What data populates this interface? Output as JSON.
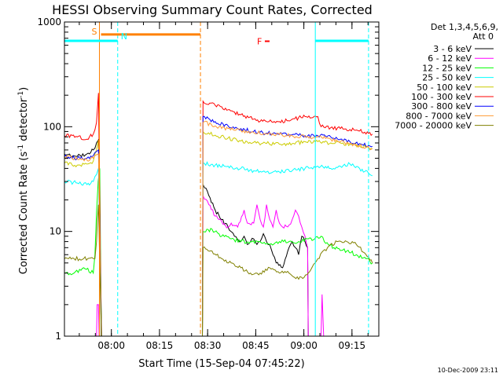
{
  "window": {
    "title": "HESSI Observing Summary Count Rates, Corrected"
  },
  "chart_data": {
    "type": "line",
    "title": "HESSI Observing Summary Count Rates, Corrected",
    "xlabel": "Start Time (15-Sep-04 07:45:22)",
    "ylabel": "Corrected Count Rate (s⁻¹ detector⁻¹)",
    "ylabel_parts": {
      "main": "Corrected Count Rate (s",
      "sup1": "-1",
      "mid": " detector",
      "sup2": "-1",
      "end": ")"
    },
    "x_unit": "minutes after 07:45:22",
    "xlim": [
      0,
      98
    ],
    "ylim": [
      1,
      1000
    ],
    "y_scale": "log",
    "x_ticks": [
      {
        "t": 14.63,
        "label": "08:00"
      },
      {
        "t": 29.63,
        "label": "08:15"
      },
      {
        "t": 44.63,
        "label": "08:30"
      },
      {
        "t": 59.63,
        "label": "08:45"
      },
      {
        "t": 74.63,
        "label": "09:00"
      },
      {
        "t": 89.63,
        "label": "09:15"
      }
    ],
    "y_ticks": [
      {
        "v": 1,
        "label": "1"
      },
      {
        "v": 10,
        "label": "10"
      },
      {
        "v": 100,
        "label": "100"
      },
      {
        "v": 1000,
        "label": "1000"
      }
    ],
    "legend": {
      "position": "right",
      "header1": "Det 1,3,4,5,6,9,",
      "header2": "Att 0"
    },
    "series": [
      {
        "name": "3 - 6 keV",
        "color": "#000000",
        "points": [
          [
            0,
            55
          ],
          [
            4,
            52
          ],
          [
            7,
            55
          ],
          [
            9,
            60
          ],
          [
            10,
            70
          ],
          [
            10.6,
            75
          ],
          [
            11.6,
            1
          ],
          [
            43,
            1
          ],
          [
            43.2,
            28
          ],
          [
            45,
            22
          ],
          [
            47,
            16
          ],
          [
            49,
            13
          ],
          [
            51,
            11
          ],
          [
            53,
            9
          ],
          [
            55,
            8
          ],
          [
            56,
            9
          ],
          [
            57,
            7.5
          ],
          [
            58,
            8
          ],
          [
            59,
            8.5
          ],
          [
            60,
            7.5
          ],
          [
            61,
            8
          ],
          [
            62,
            9.5
          ],
          [
            63,
            8
          ],
          [
            64,
            7.5
          ],
          [
            65,
            6
          ],
          [
            66,
            5
          ],
          [
            68,
            4.5
          ],
          [
            70,
            7
          ],
          [
            71,
            8
          ],
          [
            72,
            7
          ],
          [
            73,
            6
          ],
          [
            74,
            9
          ],
          [
            75,
            8
          ],
          [
            75.8,
            7
          ],
          [
            76,
            1
          ],
          [
            98,
            1
          ]
        ]
      },
      {
        "name": "6 - 12 keV",
        "color": "#ff00ff",
        "points": [
          [
            0,
            1
          ],
          [
            10,
            1
          ],
          [
            10.2,
            2
          ],
          [
            10.6,
            2
          ],
          [
            10.8,
            1
          ],
          [
            43,
            1
          ],
          [
            43.2,
            22
          ],
          [
            45,
            18
          ],
          [
            47,
            14
          ],
          [
            49,
            12.5
          ],
          [
            51,
            11
          ],
          [
            52,
            12
          ],
          [
            54,
            11
          ],
          [
            56,
            16
          ],
          [
            57,
            12
          ],
          [
            59,
            12
          ],
          [
            60,
            18
          ],
          [
            61,
            13
          ],
          [
            62,
            11
          ],
          [
            63,
            18
          ],
          [
            64,
            13
          ],
          [
            65,
            11
          ],
          [
            66,
            16
          ],
          [
            67,
            12
          ],
          [
            68,
            11
          ],
          [
            70,
            11.5
          ],
          [
            71,
            13
          ],
          [
            72,
            16
          ],
          [
            73,
            14
          ],
          [
            74,
            11
          ],
          [
            75,
            9
          ],
          [
            75.8,
            7
          ],
          [
            76,
            1
          ],
          [
            80,
            1
          ],
          [
            80.3,
            2.5
          ],
          [
            80.8,
            1
          ],
          [
            98,
            1
          ]
        ]
      },
      {
        "name": "12 - 25 keV",
        "color": "#00ff00",
        "points": [
          [
            0,
            4
          ],
          [
            3,
            4
          ],
          [
            6,
            4.5
          ],
          [
            9,
            4
          ],
          [
            9.5,
            6
          ],
          [
            10,
            15
          ],
          [
            10.5,
            30
          ],
          [
            11,
            40
          ],
          [
            11.5,
            1
          ],
          [
            43,
            1
          ],
          [
            43.2,
            10
          ],
          [
            46,
            10.5
          ],
          [
            49,
            9
          ],
          [
            52,
            8.5
          ],
          [
            55,
            8
          ],
          [
            58,
            8
          ],
          [
            61,
            8
          ],
          [
            64,
            7.5
          ],
          [
            67,
            8
          ],
          [
            70,
            8
          ],
          [
            73,
            8
          ],
          [
            76,
            8.5
          ],
          [
            78,
            8.5
          ],
          [
            80,
            9
          ],
          [
            81,
            8
          ],
          [
            84,
            7
          ],
          [
            88,
            6.5
          ],
          [
            91,
            6
          ],
          [
            94,
            5.5
          ],
          [
            96,
            5
          ]
        ]
      },
      {
        "name": "25 - 50 keV",
        "color": "#00ffff",
        "points": [
          [
            0,
            30
          ],
          [
            4,
            29
          ],
          [
            7,
            28
          ],
          [
            9,
            30
          ],
          [
            10,
            35
          ],
          [
            10.6,
            40
          ],
          [
            11.5,
            1
          ],
          [
            43,
            1
          ],
          [
            43.2,
            45
          ],
          [
            47,
            43
          ],
          [
            51,
            42
          ],
          [
            55,
            40
          ],
          [
            59,
            38
          ],
          [
            63,
            37
          ],
          [
            67,
            37
          ],
          [
            71,
            38
          ],
          [
            75,
            40
          ],
          [
            79,
            42
          ],
          [
            83,
            40
          ],
          [
            86,
            42
          ],
          [
            89,
            44
          ],
          [
            92,
            40
          ],
          [
            96,
            34
          ]
        ]
      },
      {
        "name": "50 - 100 keV",
        "color": "#cccc00",
        "points": [
          [
            0,
            45
          ],
          [
            4,
            43
          ],
          [
            7,
            44
          ],
          [
            9,
            47
          ],
          [
            10,
            60
          ],
          [
            10.6,
            75
          ],
          [
            11.5,
            1
          ],
          [
            43,
            1
          ],
          [
            43.2,
            90
          ],
          [
            47,
            83
          ],
          [
            51,
            78
          ],
          [
            55,
            73
          ],
          [
            59,
            71
          ],
          [
            63,
            69
          ],
          [
            67,
            68
          ],
          [
            71,
            69
          ],
          [
            75,
            72
          ],
          [
            79,
            72
          ],
          [
            83,
            70
          ],
          [
            86,
            70
          ],
          [
            89,
            68
          ],
          [
            92,
            66
          ],
          [
            96,
            62
          ]
        ]
      },
      {
        "name": "100 - 300 keV",
        "color": "#ff0000",
        "points": [
          [
            0,
            82
          ],
          [
            4,
            80
          ],
          [
            7,
            76
          ],
          [
            9,
            85
          ],
          [
            10,
            110
          ],
          [
            10.6,
            210
          ],
          [
            11.5,
            1
          ],
          [
            43,
            1
          ],
          [
            43.2,
            175
          ],
          [
            47,
            160
          ],
          [
            51,
            145
          ],
          [
            55,
            130
          ],
          [
            59,
            118
          ],
          [
            63,
            112
          ],
          [
            67,
            112
          ],
          [
            71,
            118
          ],
          [
            75,
            125
          ],
          [
            79,
            125
          ],
          [
            80,
            100
          ],
          [
            83,
            98
          ],
          [
            86,
            96
          ],
          [
            89,
            94
          ],
          [
            92,
            91
          ],
          [
            96,
            85
          ]
        ]
      },
      {
        "name": "300 - 800 keV",
        "color": "#0000ff",
        "points": [
          [
            0,
            52
          ],
          [
            4,
            50
          ],
          [
            7,
            50
          ],
          [
            9,
            53
          ],
          [
            10,
            58
          ],
          [
            10.6,
            60
          ],
          [
            11.5,
            1
          ],
          [
            43,
            1
          ],
          [
            43.2,
            125
          ],
          [
            47,
            112
          ],
          [
            51,
            102
          ],
          [
            55,
            96
          ],
          [
            59,
            90
          ],
          [
            63,
            87
          ],
          [
            67,
            85
          ],
          [
            71,
            84
          ],
          [
            75,
            82
          ],
          [
            79,
            82
          ],
          [
            83,
            80
          ],
          [
            86,
            76
          ],
          [
            89,
            72
          ],
          [
            92,
            69
          ],
          [
            96,
            65
          ]
        ]
      },
      {
        "name": "800 - 7000 keV",
        "color": "#ff9933",
        "points": [
          [
            0,
            52
          ],
          [
            4,
            49
          ],
          [
            7,
            48
          ],
          [
            9,
            50
          ],
          [
            10,
            54
          ],
          [
            10.6,
            55
          ],
          [
            11.5,
            1
          ],
          [
            43,
            1
          ],
          [
            43.2,
            110
          ],
          [
            47,
            102
          ],
          [
            51,
            96
          ],
          [
            55,
            92
          ],
          [
            59,
            88
          ],
          [
            63,
            86
          ],
          [
            67,
            84
          ],
          [
            71,
            82
          ],
          [
            75,
            80
          ],
          [
            79,
            80
          ],
          [
            83,
            76
          ],
          [
            86,
            72
          ],
          [
            89,
            69
          ],
          [
            92,
            66
          ],
          [
            96,
            62
          ]
        ]
      },
      {
        "name": "7000 - 20000 keV",
        "color": "#808000",
        "points": [
          [
            0,
            5.5
          ],
          [
            3,
            5.5
          ],
          [
            6,
            5.5
          ],
          [
            9,
            5.5
          ],
          [
            9.5,
            5.5
          ],
          [
            10,
            8
          ],
          [
            10.3,
            13
          ],
          [
            10.6,
            18
          ],
          [
            11.5,
            1
          ],
          [
            43,
            1
          ],
          [
            43.2,
            7
          ],
          [
            46,
            6.5
          ],
          [
            49,
            5.5
          ],
          [
            52,
            5
          ],
          [
            55,
            4.5
          ],
          [
            58,
            4
          ],
          [
            61,
            4
          ],
          [
            64,
            4.5
          ],
          [
            67,
            4
          ],
          [
            70,
            4
          ],
          [
            73,
            3.5
          ],
          [
            76,
            4
          ],
          [
            79,
            5.5
          ],
          [
            82,
            7
          ],
          [
            85,
            8
          ],
          [
            88,
            8
          ],
          [
            91,
            7.5
          ],
          [
            94,
            6
          ],
          [
            96,
            5
          ]
        ]
      }
    ],
    "annotations": {
      "flags": [
        {
          "label": "S",
          "color": "#ff8000",
          "line_t": 10.9,
          "line_style": "solid",
          "bar": [
            0,
            43
          ]
        },
        {
          "label": "N",
          "color": "#00ffff",
          "line_t": 16.6,
          "line_style": "dashed",
          "bar": [
            0,
            16.6
          ]
        },
        {
          "label": "F",
          "color": "#ff0000",
          "marker_t": 60.5,
          "marker_v": 655
        }
      ],
      "vlines": [
        {
          "t": 10.9,
          "color": "#ff8000",
          "style": "solid",
          "full": true
        },
        {
          "t": 16.6,
          "color": "#00ffff",
          "style": "dashed",
          "full": true
        },
        {
          "t": 42.4,
          "color": "#ff8000",
          "style": "dashed",
          "full": true
        },
        {
          "t": 78.2,
          "color": "#00ffff",
          "style": "solid",
          "full": true
        },
        {
          "t": 94.8,
          "color": "#00ffff",
          "style": "dashed",
          "full": true
        }
      ],
      "hbars": [
        {
          "t1": 0,
          "t2": 16.6,
          "v": 660,
          "color": "#00ffff"
        },
        {
          "t1": 11.4,
          "t2": 42.4,
          "v": 760,
          "color": "#ff8000"
        },
        {
          "t1": 78.2,
          "t2": 94.8,
          "v": 660,
          "color": "#00ffff"
        }
      ]
    }
  },
  "timestamp": "10-Dec-2009 23:11"
}
